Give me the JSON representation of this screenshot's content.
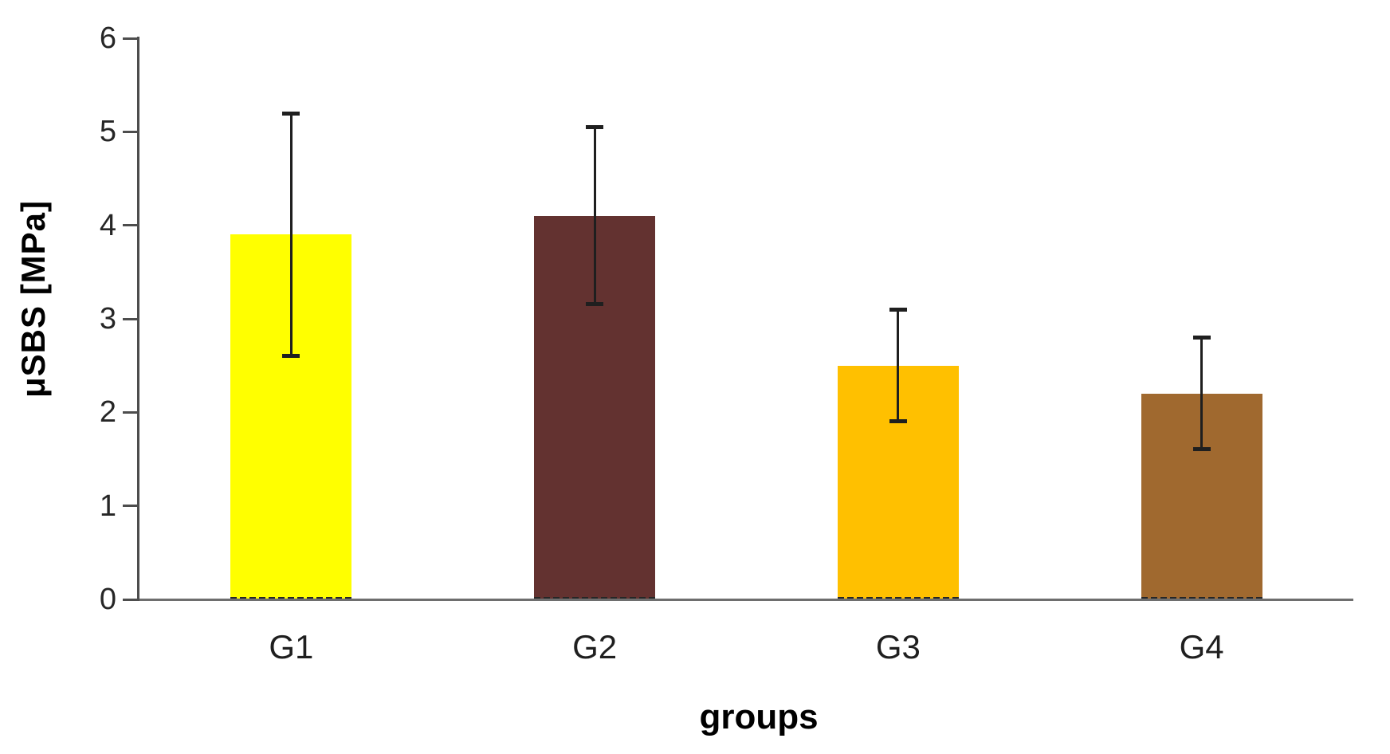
{
  "figure": {
    "background": "#ffffff",
    "y_axis_title": "μSBS [MPa]",
    "x_axis_title": "groups"
  },
  "chart_data": {
    "type": "bar",
    "title": "",
    "xlabel": "groups",
    "ylabel": "μSBS [MPa]",
    "categories": [
      "G1",
      "G2",
      "G3",
      "G4"
    ],
    "values": [
      3.9,
      4.1,
      2.5,
      2.2
    ],
    "error_top": [
      5.2,
      5.05,
      3.1,
      2.8
    ],
    "error_bottom": [
      2.6,
      3.15,
      1.9,
      1.6
    ],
    "bar_colors": [
      "#FFFF00",
      "#633230",
      "#FFC000",
      "#A0692F"
    ],
    "ylim": [
      0,
      6
    ],
    "yticks": [
      0,
      1,
      2,
      3,
      4,
      5,
      6
    ],
    "grid": false,
    "legend": false,
    "colors": {
      "error_bar": "#1f1f1f",
      "axis_line_y": "#4d4d4d",
      "axis_line_x": "#6e6e6e",
      "tick_text": "#262626",
      "category_text": "#1f1f1f",
      "title_text": "#000000"
    }
  }
}
